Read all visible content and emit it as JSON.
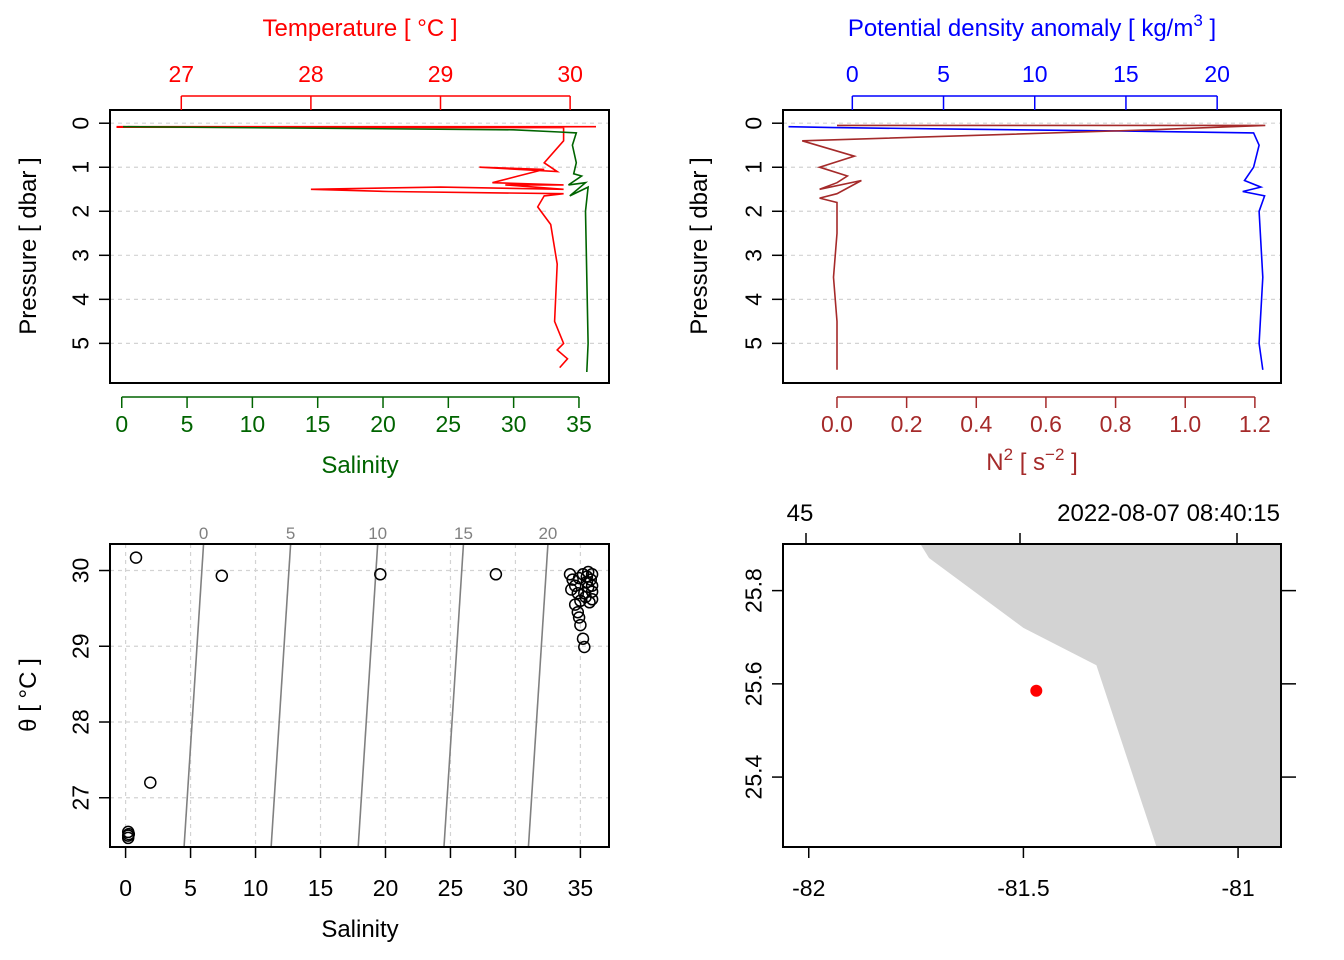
{
  "colors": {
    "temperature": "#ff0000",
    "salinity": "#006400",
    "density": "#0000ff",
    "n2": "#a52a2a",
    "grid": "#d3d3d3",
    "isopycnal": "#808080",
    "land": "#d3d3d3",
    "station": "#ff0000",
    "ink": "#000000"
  },
  "chart_data": [
    {
      "id": "ts_profile",
      "type": "line",
      "title_top": "Temperature [ °C ]",
      "xlabel_bottom": "Salinity",
      "ylabel": "Pressure [ dbar ]",
      "top_ticks": [
        "27",
        "28",
        "29",
        "30"
      ],
      "bottom_ticks": [
        "0",
        "5",
        "10",
        "15",
        "20",
        "25",
        "30",
        "35"
      ],
      "y_ticks": [
        "0",
        "1",
        "2",
        "3",
        "4",
        "5"
      ],
      "top_range": [
        26.45,
        30.3
      ],
      "bottom_range": [
        -0.9,
        37.3
      ],
      "ylim": [
        5.9,
        -0.3
      ],
      "series": [
        {
          "name": "Temperature",
          "axis": "top",
          "values": [
            [
              26.5,
              0.08
            ],
            [
              30.2,
              0.08
            ],
            [
              26.5,
              0.09
            ],
            [
              29.95,
              0.1
            ],
            [
              29.95,
              0.4
            ],
            [
              29.8,
              0.9
            ],
            [
              29.9,
              1.1
            ],
            [
              29.3,
              1.0
            ],
            [
              29.8,
              1.05
            ],
            [
              29.6,
              1.2
            ],
            [
              29.4,
              1.35
            ],
            [
              29.95,
              1.4
            ],
            [
              29.5,
              1.4
            ],
            [
              29.95,
              1.5
            ],
            [
              29.0,
              1.45
            ],
            [
              28.0,
              1.5
            ],
            [
              28.6,
              1.55
            ],
            [
              29.95,
              1.6
            ],
            [
              29.8,
              1.65
            ],
            [
              29.75,
              1.9
            ],
            [
              29.85,
              2.3
            ],
            [
              29.9,
              3.2
            ],
            [
              29.88,
              4.5
            ],
            [
              29.95,
              5.0
            ],
            [
              29.9,
              5.15
            ],
            [
              29.98,
              5.35
            ],
            [
              29.92,
              5.55
            ]
          ]
        },
        {
          "name": "Salinity",
          "axis": "bottom",
          "values": [
            [
              0.1,
              0.08
            ],
            [
              30.0,
              0.15
            ],
            [
              33.5,
              0.2
            ],
            [
              34.8,
              0.22
            ],
            [
              34.5,
              0.5
            ],
            [
              34.8,
              0.9
            ],
            [
              34.6,
              1.15
            ],
            [
              35.2,
              1.2
            ],
            [
              34.2,
              1.4
            ],
            [
              35.5,
              1.35
            ],
            [
              34.3,
              1.65
            ],
            [
              35.7,
              1.45
            ],
            [
              35.5,
              2.0
            ],
            [
              35.6,
              3.5
            ],
            [
              35.7,
              5.0
            ],
            [
              35.6,
              5.65
            ]
          ]
        }
      ]
    },
    {
      "id": "density_n2_profile",
      "type": "line",
      "title_top": "Potential density anomaly [ kg/m",
      "title_top_sup": "3",
      "title_top_end": " ]",
      "xlabel_bottom_main": "N",
      "xlabel_bottom_sup": "2",
      "xlabel_bottom_unit": " [ s",
      "xlabel_bottom_unit_sup": "−2",
      "xlabel_bottom_end": " ]",
      "ylabel": "Pressure [ dbar ]",
      "top_ticks": [
        "0",
        "5",
        "10",
        "15",
        "20"
      ],
      "bottom_ticks": [
        "0.0",
        "0.2",
        "0.4",
        "0.6",
        "0.8",
        "1.0",
        "1.2"
      ],
      "y_ticks": [
        "0",
        "1",
        "2",
        "3",
        "4",
        "5"
      ],
      "top_range": [
        -3.8,
        23.5
      ],
      "bottom_range": [
        -0.155,
        1.275
      ],
      "ylim": [
        5.9,
        -0.3
      ],
      "series": [
        {
          "name": "Potential density anomaly",
          "axis": "top",
          "values": [
            [
              -3.5,
              0.08
            ],
            [
              -1.0,
              0.1
            ],
            [
              5.0,
              0.13
            ],
            [
              15.0,
              0.18
            ],
            [
              22.0,
              0.22
            ],
            [
              22.3,
              0.5
            ],
            [
              22.0,
              1.0
            ],
            [
              21.5,
              1.3
            ],
            [
              22.4,
              1.45
            ],
            [
              21.4,
              1.55
            ],
            [
              22.6,
              1.65
            ],
            [
              22.3,
              2.0
            ],
            [
              22.5,
              3.5
            ],
            [
              22.3,
              5.0
            ],
            [
              22.5,
              5.6
            ]
          ]
        },
        {
          "name": "N2",
          "axis": "bottom",
          "values": [
            [
              0.0,
              0.05
            ],
            [
              1.23,
              0.05
            ],
            [
              0.9,
              0.15
            ],
            [
              -0.1,
              0.4
            ],
            [
              0.05,
              0.75
            ],
            [
              -0.05,
              1.0
            ],
            [
              0.03,
              1.2
            ],
            [
              0.0,
              1.35
            ],
            [
              -0.05,
              1.5
            ],
            [
              0.07,
              1.3
            ],
            [
              0.0,
              1.6
            ],
            [
              -0.05,
              1.7
            ],
            [
              0.0,
              1.8
            ],
            [
              0.0,
              2.5
            ],
            [
              -0.01,
              3.5
            ],
            [
              0.0,
              4.5
            ],
            [
              0.0,
              5.6
            ]
          ]
        }
      ]
    },
    {
      "id": "ts_diagram",
      "type": "scatter",
      "xlabel": "Salinity",
      "ylabel": "θ [ °C ]",
      "x_ticks": [
        "0",
        "5",
        "10",
        "15",
        "20",
        "25",
        "30",
        "35"
      ],
      "y_ticks": [
        "27",
        "28",
        "29",
        "30"
      ],
      "xlim": [
        -1.2,
        37.2
      ],
      "ylim": [
        26.35,
        30.35
      ],
      "isopycnal_labels": [
        "0",
        "5",
        "10",
        "15",
        "20"
      ],
      "isopycnals": [
        {
          "label": "0",
          "s_top": 6.0,
          "s_bottom": 4.5
        },
        {
          "label": "5",
          "s_top": 12.7,
          "s_bottom": 11.2
        },
        {
          "label": "10",
          "s_top": 19.4,
          "s_bottom": 17.9
        },
        {
          "label": "15",
          "s_top": 26.0,
          "s_bottom": 24.5
        },
        {
          "label": "20",
          "s_top": 32.5,
          "s_bottom": 31.0
        }
      ],
      "points": [
        [
          0.8,
          30.17
        ],
        [
          7.4,
          29.93
        ],
        [
          19.6,
          29.95
        ],
        [
          28.5,
          29.95
        ],
        [
          1.9,
          27.2
        ],
        [
          0.2,
          26.55
        ],
        [
          0.2,
          26.5
        ],
        [
          0.2,
          26.47
        ],
        [
          0.25,
          26.52
        ],
        [
          34.2,
          29.95
        ],
        [
          34.4,
          29.88
        ],
        [
          34.6,
          29.8
        ],
        [
          34.8,
          29.7
        ],
        [
          35.0,
          29.6
        ],
        [
          34.6,
          29.55
        ],
        [
          34.8,
          29.45
        ],
        [
          34.9,
          29.38
        ],
        [
          35.0,
          29.28
        ],
        [
          35.2,
          29.1
        ],
        [
          35.3,
          28.99
        ],
        [
          35.2,
          29.95
        ],
        [
          35.5,
          29.92
        ],
        [
          35.8,
          29.88
        ],
        [
          35.5,
          29.85
        ],
        [
          35.9,
          29.8
        ],
        [
          35.6,
          29.78
        ],
        [
          35.9,
          29.72
        ],
        [
          35.4,
          29.65
        ],
        [
          35.9,
          29.62
        ],
        [
          35.7,
          29.58
        ],
        [
          35.3,
          29.7
        ],
        [
          34.9,
          29.9
        ],
        [
          35.6,
          29.98
        ],
        [
          35.9,
          29.95
        ],
        [
          34.3,
          29.75
        ]
      ]
    },
    {
      "id": "station_map",
      "type": "scatter",
      "top_left_label": "45",
      "top_right_label": "2022-08-07 08:40:15",
      "x_ticks": [
        "-82",
        "-81.5",
        "-81"
      ],
      "y_ticks": [
        "25.4",
        "25.6",
        "25.8"
      ],
      "xlim": [
        -82.06,
        -80.9
      ],
      "ylim": [
        25.25,
        25.9
      ],
      "land_polygon": [
        [
          -81.74,
          25.9
        ],
        [
          -81.72,
          25.87
        ],
        [
          -81.5,
          25.72
        ],
        [
          -81.33,
          25.64
        ],
        [
          -81.19,
          25.25
        ],
        [
          -80.9,
          25.25
        ],
        [
          -80.9,
          25.9
        ]
      ],
      "station": [
        -81.47,
        25.585
      ]
    }
  ]
}
